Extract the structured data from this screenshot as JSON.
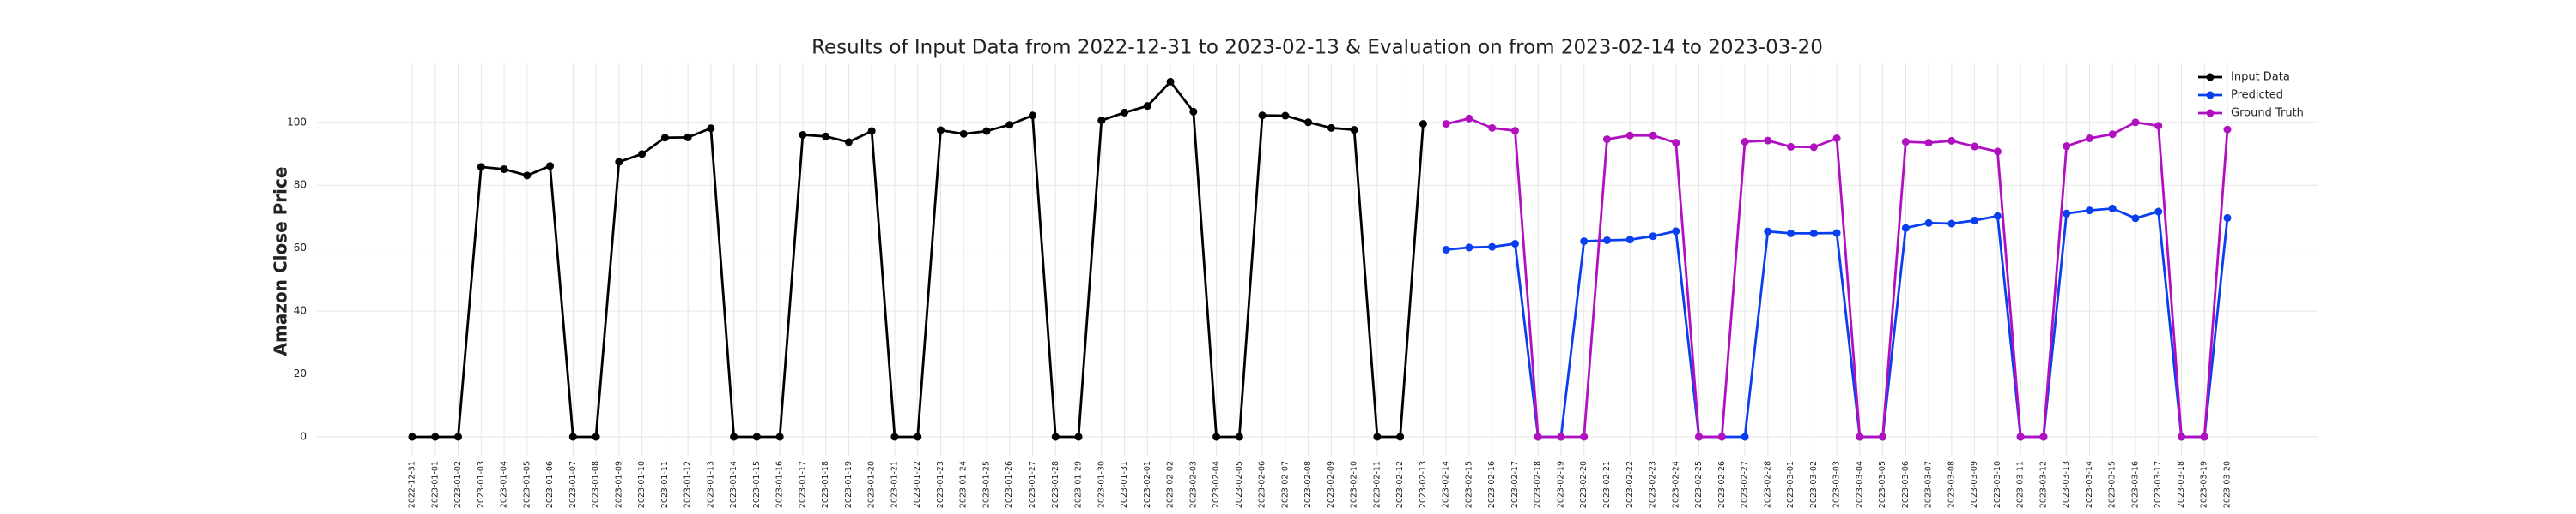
{
  "chart_data": {
    "type": "line",
    "title": "Results of Input Data from 2022-12-31 to 2023-02-13 & Evaluation on from 2023-02-14 to 2023-03-20",
    "y_label": "Amazon Close Price",
    "categories": [
      "2022-12-31",
      "2023-01-01",
      "2023-01-02",
      "2023-01-03",
      "2023-01-04",
      "2023-01-05",
      "2023-01-06",
      "2023-01-07",
      "2023-01-08",
      "2023-01-09",
      "2023-01-10",
      "2023-01-11",
      "2023-01-12",
      "2023-01-13",
      "2023-01-14",
      "2023-01-15",
      "2023-01-16",
      "2023-01-17",
      "2023-01-18",
      "2023-01-19",
      "2023-01-20",
      "2023-01-21",
      "2023-01-22",
      "2023-01-23",
      "2023-01-24",
      "2023-01-25",
      "2023-01-26",
      "2023-01-27",
      "2023-01-28",
      "2023-01-29",
      "2023-01-30",
      "2023-01-31",
      "2023-02-01",
      "2023-02-02",
      "2023-02-03",
      "2023-02-04",
      "2023-02-05",
      "2023-02-06",
      "2023-02-07",
      "2023-02-08",
      "2023-02-09",
      "2023-02-10",
      "2023-02-11",
      "2023-02-12",
      "2023-02-13",
      "2023-02-14",
      "2023-02-15",
      "2023-02-16",
      "2023-02-17",
      "2023-02-18",
      "2023-02-19",
      "2023-02-20",
      "2023-02-21",
      "2023-02-22",
      "2023-02-23",
      "2023-02-24",
      "2023-02-25",
      "2023-02-26",
      "2023-02-27",
      "2023-02-28",
      "2023-03-01",
      "2023-03-02",
      "2023-03-03",
      "2023-03-04",
      "2023-03-05",
      "2023-03-06",
      "2023-03-07",
      "2023-03-08",
      "2023-03-09",
      "2023-03-10",
      "2023-03-11",
      "2023-03-12",
      "2023-03-13",
      "2023-03-14",
      "2023-03-15",
      "2023-03-16",
      "2023-03-17",
      "2023-03-18",
      "2023-03-19",
      "2023-03-20"
    ],
    "series": [
      {
        "name": "Input Data",
        "color": "#000000",
        "values": [
          0,
          0,
          0,
          85.8,
          85.1,
          83.1,
          86.1,
          0,
          0,
          87.4,
          89.9,
          95.1,
          95.2,
          98.1,
          0,
          0,
          0,
          96.0,
          95.5,
          93.7,
          97.2,
          0,
          0,
          97.5,
          96.3,
          97.2,
          99.2,
          102.2,
          0,
          0,
          100.6,
          103.1,
          105.2,
          112.9,
          103.4,
          0,
          0,
          102.2,
          102.1,
          100.0,
          98.2,
          97.6,
          0,
          0,
          99.5,
          null,
          null,
          null,
          null,
          null,
          null,
          null,
          null,
          null,
          null,
          null,
          null,
          null,
          null,
          null,
          null,
          null,
          null,
          null,
          null,
          null,
          null,
          null,
          null,
          null,
          null,
          null,
          null,
          null,
          null,
          null,
          null,
          null,
          null,
          null
        ]
      },
      {
        "name": "Predicted",
        "color": "#0a3ff0",
        "values": [
          null,
          null,
          null,
          null,
          null,
          null,
          null,
          null,
          null,
          null,
          null,
          null,
          null,
          null,
          null,
          null,
          null,
          null,
          null,
          null,
          null,
          null,
          null,
          null,
          null,
          null,
          null,
          null,
          null,
          null,
          null,
          null,
          null,
          null,
          null,
          null,
          null,
          null,
          null,
          null,
          null,
          null,
          null,
          null,
          null,
          59.5,
          60.2,
          60.4,
          61.4,
          0,
          0,
          62.2,
          62.5,
          62.7,
          63.8,
          65.4,
          0,
          0,
          0,
          65.3,
          64.7,
          64.7,
          64.8,
          0,
          0,
          66.4,
          68.0,
          67.8,
          68.8,
          70.2,
          0,
          0,
          71.0,
          72.0,
          72.6,
          69.5,
          71.6,
          0,
          0,
          69.6
        ]
      },
      {
        "name": "Ground Truth",
        "color": "#b010c0",
        "values": [
          null,
          null,
          null,
          null,
          null,
          null,
          null,
          null,
          null,
          null,
          null,
          null,
          null,
          null,
          null,
          null,
          null,
          null,
          null,
          null,
          null,
          null,
          null,
          null,
          null,
          null,
          null,
          null,
          null,
          null,
          null,
          null,
          null,
          null,
          null,
          null,
          null,
          null,
          null,
          null,
          null,
          null,
          null,
          null,
          null,
          99.5,
          101.2,
          98.2,
          97.3,
          0,
          0,
          0,
          94.6,
          95.8,
          95.8,
          93.5,
          0,
          0,
          93.8,
          94.2,
          92.2,
          92.1,
          94.9,
          0,
          0,
          93.8,
          93.5,
          94.1,
          92.3,
          90.7,
          0,
          0,
          92.4,
          94.9,
          96.2,
          100.0,
          98.9,
          0,
          0,
          97.7
        ]
      }
    ],
    "ylim": [
      -6,
      119
    ],
    "yticks": [
      0,
      20,
      40,
      60,
      80,
      100
    ],
    "grid": true,
    "legend": "upper right"
  }
}
